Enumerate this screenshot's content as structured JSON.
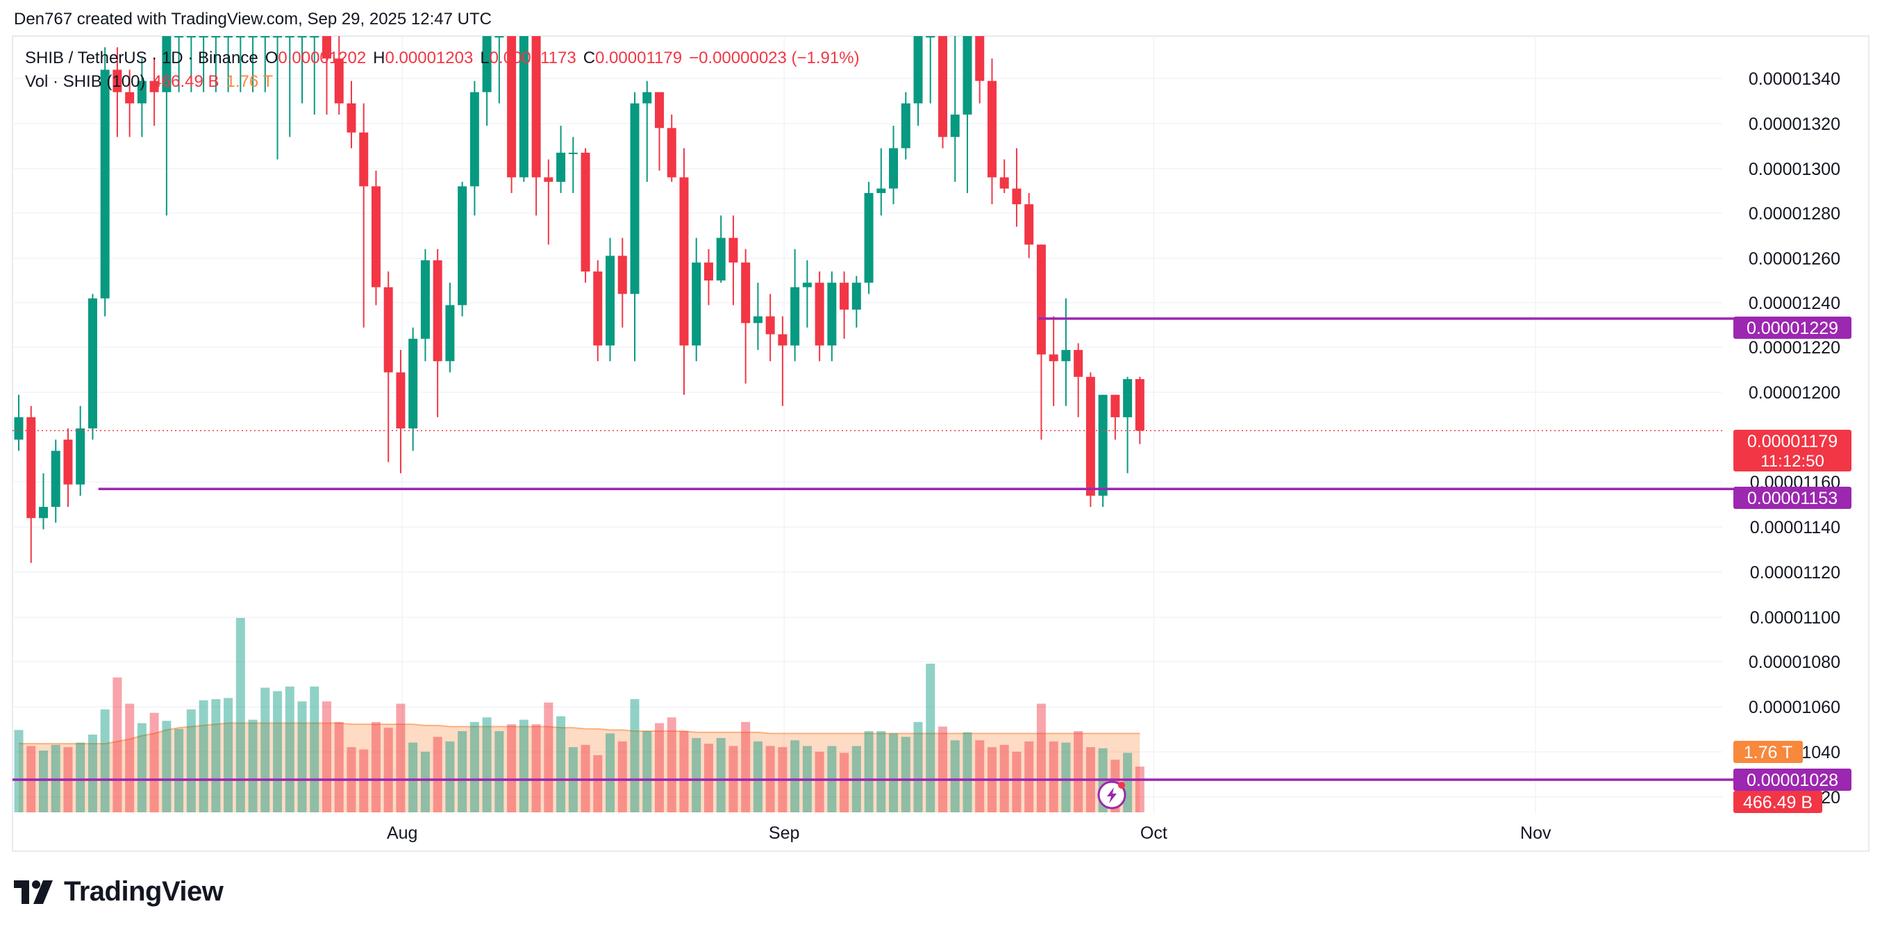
{
  "attribution": "Den767 created with TradingView.com, Sep 29, 2025 12:47 UTC",
  "brand": "TradingView",
  "colors": {
    "up": "#089981",
    "down": "#f23645",
    "level": "#9c27b0",
    "volume_ma": "#f7883c",
    "grid": "#f0f3fa"
  },
  "legend": {
    "symbol": "SHIB / TetherUS · 1D · Binance",
    "open_label": "O",
    "open": "0.00001202",
    "high_label": "H",
    "high": "0.00001203",
    "low_label": "L",
    "low": "0.00001173",
    "close_label": "C",
    "close": "0.00001179",
    "change": "−0.00000023 (−1.91%)",
    "volume_label": "Vol · SHIB (100)",
    "volume": "466.49 B",
    "volume_ma": "1.76 T"
  },
  "chart_data": {
    "type": "candlestick",
    "title": "SHIB / TetherUS · 1D · Binance",
    "y_axis": {
      "range": [
        1.01e-05,
        1.355e-05
      ],
      "ticks": [
        "0.00001340",
        "0.00001320",
        "0.00001300",
        "0.00001280",
        "0.00001260",
        "0.00001240",
        "0.00001220",
        "0.00001200",
        "0.00001160",
        "0.00001140",
        "0.00001120",
        "0.00001100",
        "0.00001080",
        "0.00001060",
        "1040",
        "20"
      ]
    },
    "x_axis": {
      "ticks": [
        {
          "label": "Aug",
          "index": 30
        },
        {
          "label": "Sep",
          "index": 61
        },
        {
          "label": "Oct",
          "index": 91
        },
        {
          "label": "Nov",
          "index": 122
        }
      ]
    },
    "price_labels": [
      {
        "name": "level-upper",
        "value": "0.00001229",
        "price": 1.229e-05
      },
      {
        "name": "last-price",
        "value": "0.00001179",
        "countdown": "11:12:50",
        "price": 1.179e-05
      },
      {
        "name": "level-lower",
        "value": "0.00001153",
        "price": 1.153e-05
      },
      {
        "name": "volume-ma",
        "value": "1.76 T"
      },
      {
        "name": "level-bottom",
        "value": "0.00001028",
        "price": 1.028e-05
      },
      {
        "name": "volume",
        "value": "466.49 B"
      }
    ],
    "levels": [
      {
        "price": 1.229e-05,
        "start_index": 83
      },
      {
        "price": 1.153e-05,
        "start_index": 5
      },
      {
        "price": 1.028e-05,
        "start_index": 0
      }
    ],
    "candles": [
      [
        1.175e-05,
        1.185e-05,
        1.17e-05,
        1.195e-05
      ],
      [
        1.185e-05,
        1.14e-05,
        1.12e-05,
        1.19e-05
      ],
      [
        1.14e-05,
        1.145e-05,
        1.135e-05,
        1.16e-05
      ],
      [
        1.145e-05,
        1.17e-05,
        1.138e-05,
        1.175e-05
      ],
      [
        1.175e-05,
        1.155e-05,
        1.145e-05,
        1.18e-05
      ],
      [
        1.155e-05,
        1.18e-05,
        1.15e-05,
        1.19e-05
      ],
      [
        1.18e-05,
        1.238e-05,
        1.175e-05,
        1.24e-05
      ],
      [
        1.238e-05,
        1.34e-05,
        1.23e-05,
        1.35e-05
      ],
      [
        1.34e-05,
        1.33e-05,
        1.31e-05,
        1.35e-05
      ],
      [
        1.33e-05,
        1.325e-05,
        1.31e-05,
        1.34e-05
      ],
      [
        1.325e-05,
        1.335e-05,
        1.31e-05,
        1.345e-05
      ],
      [
        1.335e-05,
        1.33e-05,
        1.315e-05,
        1.345e-05
      ],
      [
        1.33e-05,
        1.355e-05,
        1.275e-05,
        1.355e-05
      ],
      [
        1.355e-05,
        1.355e-05,
        1.33e-05,
        1.355e-05
      ],
      [
        1.355e-05,
        1.355e-05,
        1.33e-05,
        1.355e-05
      ],
      [
        1.355e-05,
        1.355e-05,
        1.33e-05,
        1.355e-05
      ],
      [
        1.355e-05,
        1.355e-05,
        1.33e-05,
        1.355e-05
      ],
      [
        1.355e-05,
        1.355e-05,
        1.33e-05,
        1.355e-05
      ],
      [
        1.355e-05,
        1.355e-05,
        1.33e-05,
        1.355e-05
      ],
      [
        1.355e-05,
        1.355e-05,
        1.33e-05,
        1.355e-05
      ],
      [
        1.355e-05,
        1.355e-05,
        1.33e-05,
        1.355e-05
      ],
      [
        1.355e-05,
        1.355e-05,
        1.3e-05,
        1.355e-05
      ],
      [
        1.355e-05,
        1.355e-05,
        1.31e-05,
        1.355e-05
      ],
      [
        1.355e-05,
        1.355e-05,
        1.325e-05,
        1.355e-05
      ],
      [
        1.355e-05,
        1.355e-05,
        1.32e-05,
        1.355e-05
      ],
      [
        1.355e-05,
        1.345e-05,
        1.32e-05,
        1.355e-05
      ],
      [
        1.345e-05,
        1.325e-05,
        1.32e-05,
        1.355e-05
      ],
      [
        1.325e-05,
        1.312e-05,
        1.305e-05,
        1.335e-05
      ],
      [
        1.312e-05,
        1.288e-05,
        1.225e-05,
        1.325e-05
      ],
      [
        1.288e-05,
        1.243e-05,
        1.235e-05,
        1.295e-05
      ],
      [
        1.243e-05,
        1.205e-05,
        1.165e-05,
        1.25e-05
      ],
      [
        1.205e-05,
        1.18e-05,
        1.16e-05,
        1.215e-05
      ],
      [
        1.18e-05,
        1.22e-05,
        1.17e-05,
        1.225e-05
      ],
      [
        1.22e-05,
        1.255e-05,
        1.21e-05,
        1.26e-05
      ],
      [
        1.255e-05,
        1.21e-05,
        1.185e-05,
        1.26e-05
      ],
      [
        1.21e-05,
        1.235e-05,
        1.205e-05,
        1.245e-05
      ],
      [
        1.235e-05,
        1.288e-05,
        1.23e-05,
        1.29e-05
      ],
      [
        1.288e-05,
        1.33e-05,
        1.275e-05,
        1.335e-05
      ],
      [
        1.33e-05,
        1.355e-05,
        1.315e-05,
        1.355e-05
      ],
      [
        1.355e-05,
        1.355e-05,
        1.325e-05,
        1.355e-05
      ],
      [
        1.355e-05,
        1.292e-05,
        1.285e-05,
        1.355e-05
      ],
      [
        1.292e-05,
        1.355e-05,
        1.29e-05,
        1.355e-05
      ],
      [
        1.355e-05,
        1.292e-05,
        1.275e-05,
        1.355e-05
      ],
      [
        1.292e-05,
        1.29e-05,
        1.262e-05,
        1.3e-05
      ],
      [
        1.29e-05,
        1.303e-05,
        1.285e-05,
        1.315e-05
      ],
      [
        1.303e-05,
        1.303e-05,
        1.285e-05,
        1.31e-05
      ],
      [
        1.303e-05,
        1.25e-05,
        1.245e-05,
        1.305e-05
      ],
      [
        1.25e-05,
        1.217e-05,
        1.21e-05,
        1.255e-05
      ],
      [
        1.217e-05,
        1.257e-05,
        1.21e-05,
        1.265e-05
      ],
      [
        1.257e-05,
        1.24e-05,
        1.225e-05,
        1.265e-05
      ],
      [
        1.24e-05,
        1.325e-05,
        1.21e-05,
        1.33e-05
      ],
      [
        1.325e-05,
        1.33e-05,
        1.29e-05,
        1.335e-05
      ],
      [
        1.33e-05,
        1.314e-05,
        1.295e-05,
        1.33e-05
      ],
      [
        1.314e-05,
        1.292e-05,
        1.29e-05,
        1.32e-05
      ],
      [
        1.292e-05,
        1.217e-05,
        1.195e-05,
        1.305e-05
      ],
      [
        1.217e-05,
        1.254e-05,
        1.21e-05,
        1.265e-05
      ],
      [
        1.254e-05,
        1.246e-05,
        1.235e-05,
        1.26e-05
      ],
      [
        1.246e-05,
        1.265e-05,
        1.245e-05,
        1.275e-05
      ],
      [
        1.265e-05,
        1.254e-05,
        1.235e-05,
        1.275e-05
      ],
      [
        1.254e-05,
        1.227e-05,
        1.2e-05,
        1.26e-05
      ],
      [
        1.227e-05,
        1.23e-05,
        1.215e-05,
        1.245e-05
      ],
      [
        1.23e-05,
        1.222e-05,
        1.21e-05,
        1.24e-05
      ],
      [
        1.222e-05,
        1.217e-05,
        1.19e-05,
        1.23e-05
      ],
      [
        1.217e-05,
        1.243e-05,
        1.21e-05,
        1.26e-05
      ],
      [
        1.243e-05,
        1.245e-05,
        1.225e-05,
        1.255e-05
      ],
      [
        1.245e-05,
        1.217e-05,
        1.21e-05,
        1.25e-05
      ],
      [
        1.217e-05,
        1.245e-05,
        1.21e-05,
        1.25e-05
      ],
      [
        1.245e-05,
        1.233e-05,
        1.22e-05,
        1.25e-05
      ],
      [
        1.233e-05,
        1.245e-05,
        1.225e-05,
        1.248e-05
      ],
      [
        1.245e-05,
        1.285e-05,
        1.24e-05,
        1.29e-05
      ],
      [
        1.285e-05,
        1.287e-05,
        1.275e-05,
        1.305e-05
      ],
      [
        1.287e-05,
        1.305e-05,
        1.28e-05,
        1.315e-05
      ],
      [
        1.305e-05,
        1.325e-05,
        1.3e-05,
        1.33e-05
      ],
      [
        1.325e-05,
        1.355e-05,
        1.315e-05,
        1.355e-05
      ],
      [
        1.355e-05,
        1.355e-05,
        1.325e-05,
        1.355e-05
      ],
      [
        1.355e-05,
        1.31e-05,
        1.305e-05,
        1.355e-05
      ],
      [
        1.31e-05,
        1.32e-05,
        1.29e-05,
        1.355e-05
      ],
      [
        1.32e-05,
        1.355e-05,
        1.285e-05,
        1.355e-05
      ],
      [
        1.355e-05,
        1.335e-05,
        1.325e-05,
        1.355e-05
      ],
      [
        1.335e-05,
        1.292e-05,
        1.28e-05,
        1.345e-05
      ],
      [
        1.292e-05,
        1.287e-05,
        1.285e-05,
        1.3e-05
      ],
      [
        1.287e-05,
        1.28e-05,
        1.27e-05,
        1.305e-05
      ],
      [
        1.28e-05,
        1.262e-05,
        1.256e-05,
        1.285e-05
      ],
      [
        1.262e-05,
        1.213e-05,
        1.175e-05,
        1.262e-05
      ],
      [
        1.213e-05,
        1.21e-05,
        1.19e-05,
        1.23e-05
      ],
      [
        1.21e-05,
        1.215e-05,
        1.19e-05,
        1.238e-05
      ],
      [
        1.215e-05,
        1.203e-05,
        1.185e-05,
        1.218e-05
      ],
      [
        1.203e-05,
        1.15e-05,
        1.145e-05,
        1.205e-05
      ],
      [
        1.15e-05,
        1.195e-05,
        1.145e-05,
        1.195e-05
      ],
      [
        1.195e-05,
        1.185e-05,
        1.175e-05,
        1.195e-05
      ],
      [
        1.185e-05,
        1.202e-05,
        1.16e-05,
        1.203e-05
      ],
      [
        1.202e-05,
        1.179e-05,
        1.173e-05,
        1.203e-05
      ]
    ],
    "volume": {
      "scale_max": 1.7,
      "bars": [
        0.72,
        0.58,
        0.54,
        0.59,
        0.57,
        0.61,
        0.68,
        0.9,
        1.18,
        0.95,
        0.78,
        0.87,
        0.8,
        0.73,
        0.9,
        0.98,
        0.99,
        1.0,
        1.7,
        0.81,
        1.09,
        1.06,
        1.1,
        0.97,
        1.1,
        0.97,
        0.79,
        0.57,
        0.55,
        0.79,
        0.74,
        0.95,
        0.61,
        0.53,
        0.66,
        0.62,
        0.71,
        0.79,
        0.83,
        0.71,
        0.77,
        0.81,
        0.77,
        0.96,
        0.84,
        0.57,
        0.59,
        0.5,
        0.69,
        0.62,
        0.99,
        0.71,
        0.78,
        0.83,
        0.71,
        0.65,
        0.6,
        0.65,
        0.58,
        0.79,
        0.62,
        0.58,
        0.57,
        0.63,
        0.58,
        0.53,
        0.58,
        0.52,
        0.58,
        0.71,
        0.71,
        0.69,
        0.66,
        0.79,
        1.3,
        0.75,
        0.63,
        0.7,
        0.63,
        0.57,
        0.59,
        0.53,
        0.62,
        0.95,
        0.62,
        0.61,
        0.71,
        0.57,
        0.56,
        0.46,
        0.52,
        0.4
      ],
      "ma": [
        0.6,
        0.6,
        0.6,
        0.6,
        0.6,
        0.6,
        0.6,
        0.6,
        0.62,
        0.64,
        0.67,
        0.69,
        0.72,
        0.74,
        0.75,
        0.76,
        0.77,
        0.78,
        0.78,
        0.78,
        0.78,
        0.78,
        0.78,
        0.78,
        0.78,
        0.78,
        0.78,
        0.77,
        0.77,
        0.77,
        0.77,
        0.77,
        0.77,
        0.76,
        0.76,
        0.75,
        0.75,
        0.75,
        0.75,
        0.75,
        0.75,
        0.75,
        0.75,
        0.75,
        0.74,
        0.74,
        0.73,
        0.73,
        0.72,
        0.72,
        0.71,
        0.71,
        0.71,
        0.71,
        0.71,
        0.7,
        0.7,
        0.7,
        0.7,
        0.7,
        0.7,
        0.69,
        0.69,
        0.69,
        0.69,
        0.69,
        0.69,
        0.69,
        0.69,
        0.69,
        0.69,
        0.69,
        0.69,
        0.69,
        0.69,
        0.69,
        0.69,
        0.69,
        0.69,
        0.69,
        0.69,
        0.69,
        0.69,
        0.69,
        0.69,
        0.69,
        0.69,
        0.69,
        0.69,
        0.69,
        0.69,
        0.69
      ]
    }
  }
}
